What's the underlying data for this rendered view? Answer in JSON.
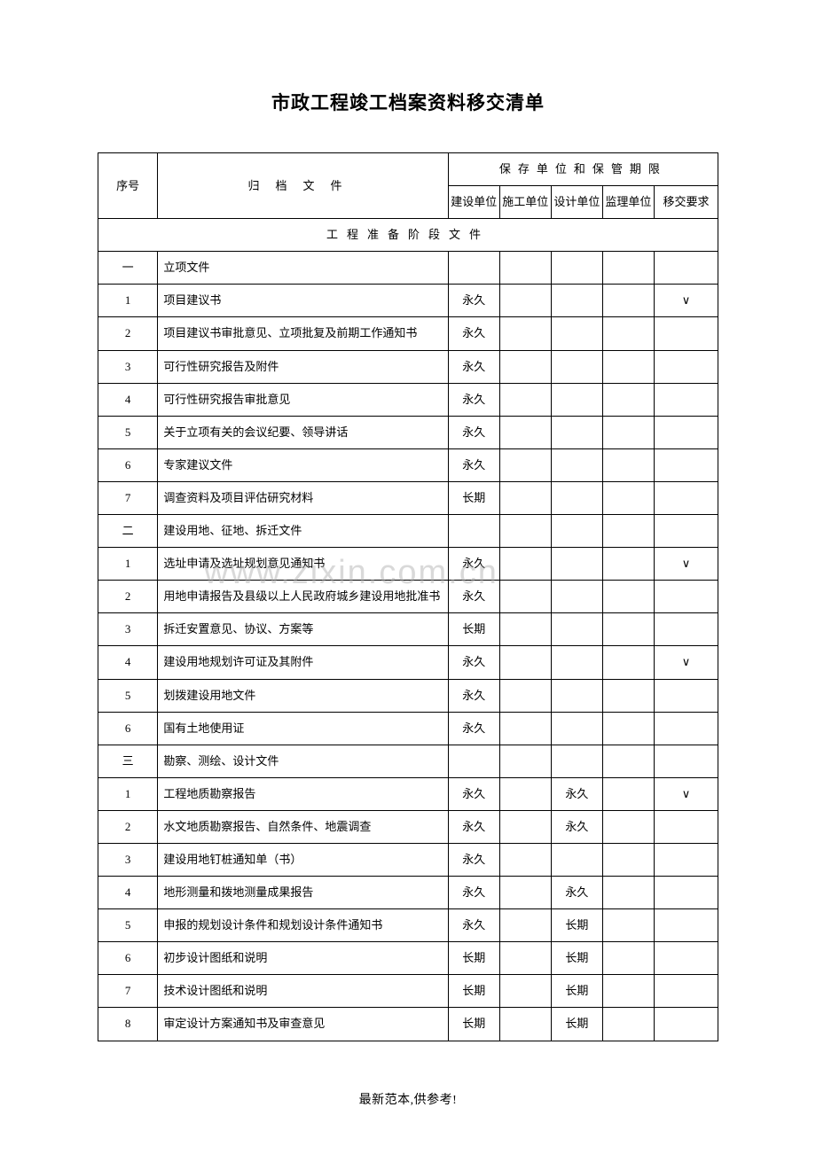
{
  "title": "市政工程竣工档案资料移交清单",
  "watermark": "www.zixin.com.cn",
  "footer": "最新范本,供参考!",
  "table": {
    "header": {
      "seq": "序号",
      "file": "归档文件",
      "storage_group": "保存单位和保管期限",
      "build_unit": "建设单位",
      "construct_unit": "施工单位",
      "design_unit": "设计单位",
      "supervise_unit": "监理单位",
      "transfer_req": "移交要求"
    },
    "section_header": "工程准备阶段文件",
    "groups": [
      {
        "group_seq": "一",
        "group_title": "立项文件",
        "rows": [
          {
            "seq": "1",
            "file": "项目建议书",
            "c1": "永久",
            "c2": "",
            "c3": "",
            "c4": "",
            "c5": "∨"
          },
          {
            "seq": "2",
            "file": "项目建议书审批意见、立项批复及前期工作通知书",
            "c1": "永久",
            "c2": "",
            "c3": "",
            "c4": "",
            "c5": ""
          },
          {
            "seq": "3",
            "file": "可行性研究报告及附件",
            "c1": "永久",
            "c2": "",
            "c3": "",
            "c4": "",
            "c5": ""
          },
          {
            "seq": "4",
            "file": "可行性研究报告审批意见",
            "c1": "永久",
            "c2": "",
            "c3": "",
            "c4": "",
            "c5": ""
          },
          {
            "seq": "5",
            "file": "关于立项有关的会议纪要、领导讲话",
            "c1": "永久",
            "c2": "",
            "c3": "",
            "c4": "",
            "c5": ""
          },
          {
            "seq": "6",
            "file": "专家建议文件",
            "c1": "永久",
            "c2": "",
            "c3": "",
            "c4": "",
            "c5": ""
          },
          {
            "seq": "7",
            "file": "调查资料及项目评估研究材料",
            "c1": "长期",
            "c2": "",
            "c3": "",
            "c4": "",
            "c5": ""
          }
        ]
      },
      {
        "group_seq": "二",
        "group_title": "建设用地、征地、拆迁文件",
        "rows": [
          {
            "seq": "1",
            "file": "选址申请及选址规划意见通知书",
            "c1": "永久",
            "c2": "",
            "c3": "",
            "c4": "",
            "c5": "∨"
          },
          {
            "seq": "2",
            "file": "用地申请报告及县级以上人民政府城乡建设用地批准书",
            "c1": "永久",
            "c2": "",
            "c3": "",
            "c4": "",
            "c5": ""
          },
          {
            "seq": "3",
            "file": "拆迁安置意见、协议、方案等",
            "c1": "长期",
            "c2": "",
            "c3": "",
            "c4": "",
            "c5": ""
          },
          {
            "seq": "4",
            "file": "建设用地规划许可证及其附件",
            "c1": "永久",
            "c2": "",
            "c3": "",
            "c4": "",
            "c5": "∨"
          },
          {
            "seq": "5",
            "file": "划拨建设用地文件",
            "c1": "永久",
            "c2": "",
            "c3": "",
            "c4": "",
            "c5": ""
          },
          {
            "seq": "6",
            "file": "国有土地使用证",
            "c1": "永久",
            "c2": "",
            "c3": "",
            "c4": "",
            "c5": ""
          }
        ]
      },
      {
        "group_seq": "三",
        "group_title": "勘察、测绘、设计文件",
        "rows": [
          {
            "seq": "1",
            "file": "工程地质勘察报告",
            "c1": "永久",
            "c2": "",
            "c3": "永久",
            "c4": "",
            "c5": "∨"
          },
          {
            "seq": "2",
            "file": "水文地质勘察报告、自然条件、地震调查",
            "c1": "永久",
            "c2": "",
            "c3": "永久",
            "c4": "",
            "c5": ""
          },
          {
            "seq": "3",
            "file": "建设用地钉桩通知单（书）",
            "c1": "永久",
            "c2": "",
            "c3": "",
            "c4": "",
            "c5": ""
          },
          {
            "seq": "4",
            "file": "地形测量和拨地测量成果报告",
            "c1": "永久",
            "c2": "",
            "c3": "永久",
            "c4": "",
            "c5": ""
          },
          {
            "seq": "5",
            "file": "申报的规划设计条件和规划设计条件通知书",
            "c1": "永久",
            "c2": "",
            "c3": "长期",
            "c4": "",
            "c5": ""
          },
          {
            "seq": "6",
            "file": "初步设计图纸和说明",
            "c1": "长期",
            "c2": "",
            "c3": "长期",
            "c4": "",
            "c5": ""
          },
          {
            "seq": "7",
            "file": "技术设计图纸和说明",
            "c1": "长期",
            "c2": "",
            "c3": "长期",
            "c4": "",
            "c5": ""
          },
          {
            "seq": "8",
            "file": "审定设计方案通知书及审查意见",
            "c1": "长期",
            "c2": "",
            "c3": "长期",
            "c4": "",
            "c5": ""
          }
        ]
      }
    ]
  }
}
